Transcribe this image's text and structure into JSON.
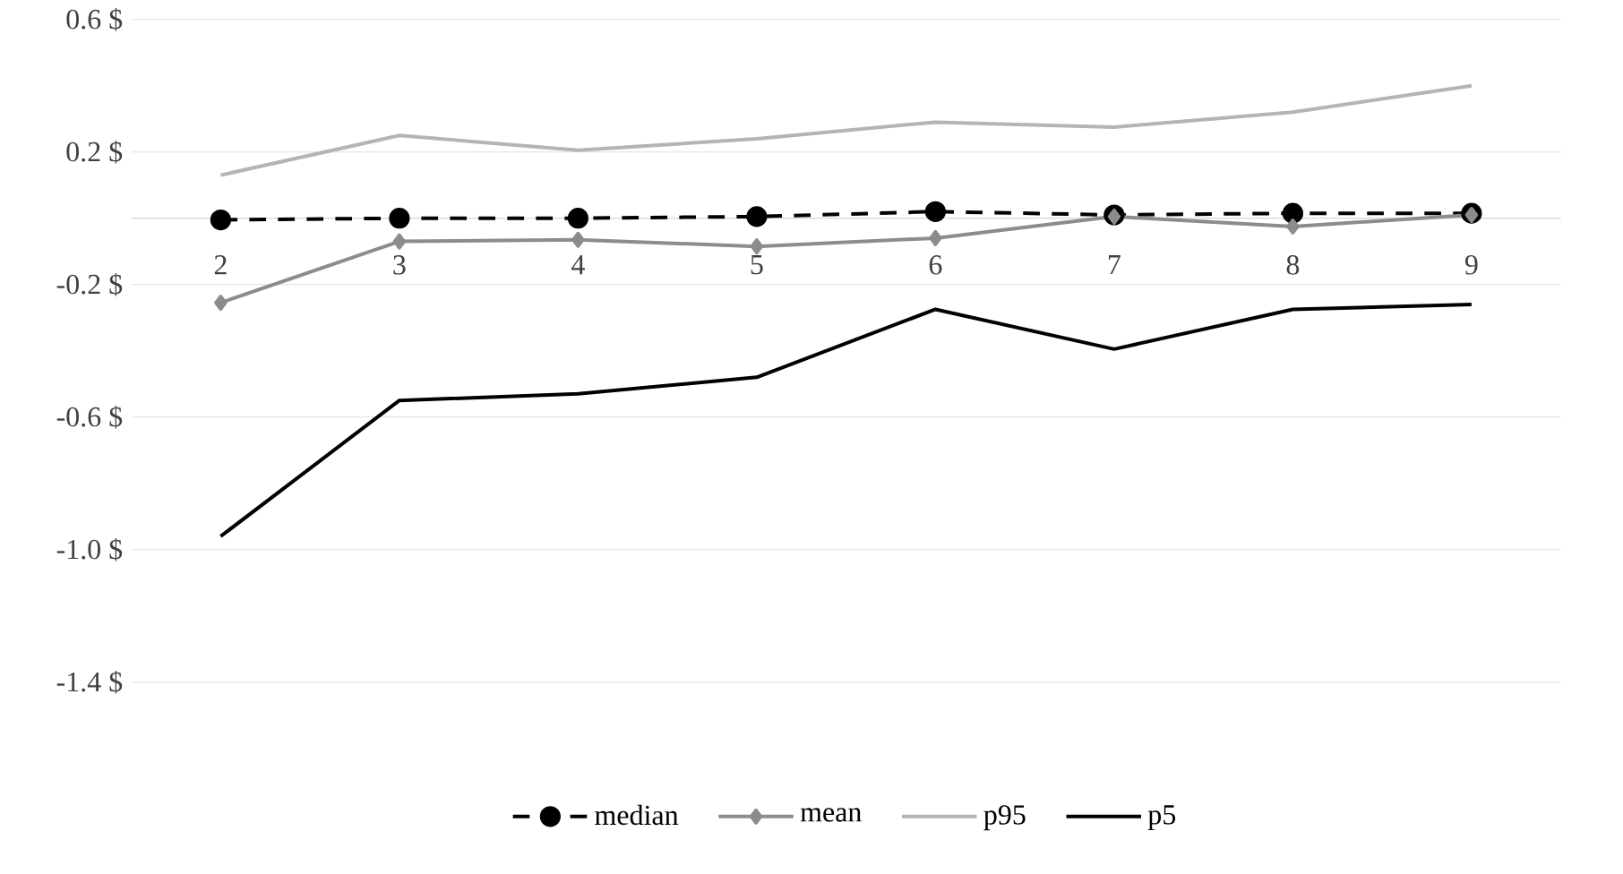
{
  "chart_data": {
    "type": "line",
    "categories": [
      "2",
      "3",
      "4",
      "5",
      "6",
      "7",
      "8",
      "9"
    ],
    "ylim": [
      -1.4,
      0.6
    ],
    "yticks": [
      {
        "value": -1.4,
        "label": "-1.4 $"
      },
      {
        "value": -1.0,
        "label": "-1.0 $"
      },
      {
        "value": -0.6,
        "label": "-0.6 $"
      },
      {
        "value": -0.2,
        "label": "-0.2 $"
      },
      {
        "value": 0.2,
        "label": "0.2 $"
      },
      {
        "value": 0.6,
        "label": "0.6 $"
      }
    ],
    "grid": "y",
    "legend": "bottom",
    "series": [
      {
        "name": "median",
        "color": "#000000",
        "marker": "circle",
        "line_style": "dashed",
        "values": [
          -0.005,
          0,
          0,
          0.005,
          0.02,
          0.01,
          0.015,
          0.015
        ]
      },
      {
        "name": "mean",
        "color": "#8c8c8c",
        "marker": "diamond",
        "line_style": "solid",
        "values": [
          -0.255,
          -0.07,
          -0.065,
          -0.085,
          -0.06,
          0.005,
          -0.025,
          0.01
        ]
      },
      {
        "name": "p95",
        "color": "#b4b4b4",
        "marker": "none",
        "line_style": "solid",
        "values": [
          0.13,
          0.25,
          0.205,
          0.24,
          0.29,
          0.275,
          0.32,
          0.4
        ]
      },
      {
        "name": "p5",
        "color": "#000000",
        "marker": "none",
        "line_style": "solid",
        "values": [
          -0.96,
          -0.55,
          -0.53,
          -0.48,
          -0.275,
          -0.395,
          -0.275,
          -0.26
        ]
      }
    ]
  }
}
